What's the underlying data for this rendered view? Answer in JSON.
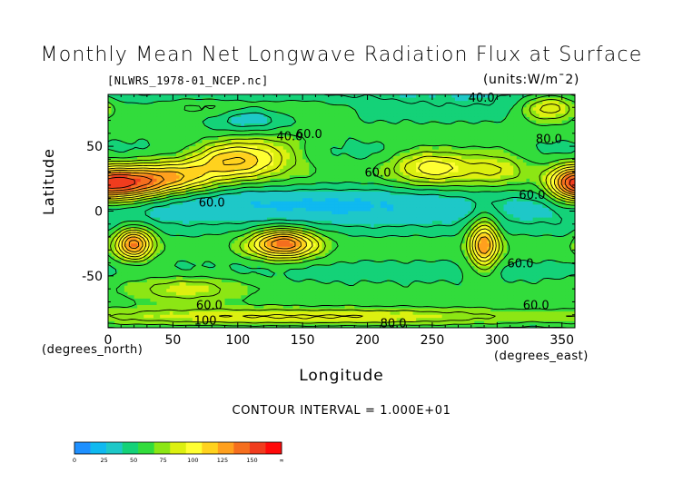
{
  "chart_data": {
    "type": "heatmap",
    "title": "Monthly Mean Net Longwave Radiation Flux at Surface",
    "source_file": "[NLWRS_1978-01_NCEP.nc]",
    "units": "(units:W/m¯2)",
    "xlabel": "Longitude",
    "ylabel": "Latitude",
    "xunits": "(degrees_east)",
    "yunits": "(degrees_north)",
    "xlim": [
      0,
      360
    ],
    "ylim": [
      -90,
      90
    ],
    "xticks": [
      0,
      50,
      100,
      150,
      200,
      250,
      300,
      350
    ],
    "yticks": [
      50,
      0,
      -50
    ],
    "contour_interval_label": "CONTOUR INTERVAL = 1.000E+01",
    "contour_labels": [
      {
        "text": "40.0",
        "lon": 140,
        "lat": 58
      },
      {
        "text": "60.0",
        "lon": 155,
        "lat": 60
      },
      {
        "text": "40.0",
        "lon": 288,
        "lat": 88
      },
      {
        "text": "80.0",
        "lon": 340,
        "lat": 56
      },
      {
        "text": "60.0",
        "lon": 208,
        "lat": 30
      },
      {
        "text": "60.0",
        "lon": 327,
        "lat": 13
      },
      {
        "text": "60.0",
        "lon": 80,
        "lat": 7
      },
      {
        "text": "60.0",
        "lon": 318,
        "lat": -40
      },
      {
        "text": "60.0",
        "lon": 78,
        "lat": -72
      },
      {
        "text": "60.0",
        "lon": 330,
        "lat": -72
      },
      {
        "text": "100",
        "lon": 75,
        "lat": -84
      },
      {
        "text": "80.0",
        "lon": 220,
        "lat": -86
      }
    ],
    "colorbar": {
      "tick_labels": [
        "0",
        "25",
        "50",
        "75",
        "100",
        "125",
        "150",
        "∞"
      ],
      "colors": [
        "#1e90ff",
        "#0fb9f0",
        "#1ec8c8",
        "#14d278",
        "#32dc3c",
        "#8ce614",
        "#dcf010",
        "#ffff32",
        "#ffd21e",
        "#ffa01e",
        "#f56e1e",
        "#f03c1e",
        "#ff0a0a"
      ]
    }
  }
}
